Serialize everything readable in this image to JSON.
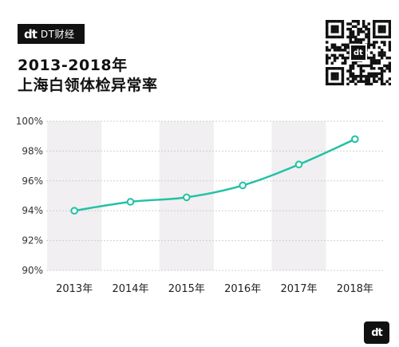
{
  "header": {
    "logo_mark": "dt",
    "logo_text": "DT财经",
    "title_line1": "2013-2018年",
    "title_line2": "上海白领体检异常率"
  },
  "qr_code": {
    "center_mark": "dt"
  },
  "footer": {
    "badge_mark": "dt"
  },
  "colors": {
    "line": "#22c1a4",
    "band": "#f1eff1",
    "grid": "#cfcfcf"
  },
  "chart_data": {
    "type": "line",
    "title": "2013-2018年 上海白领体检异常率",
    "categories": [
      "2013年",
      "2014年",
      "2015年",
      "2016年",
      "2017年",
      "2018年"
    ],
    "series": [
      {
        "values": [
          94.0,
          94.6,
          94.9,
          95.7,
          97.1,
          98.8
        ]
      }
    ],
    "ylim": [
      90,
      100
    ],
    "yticks": [
      "90%",
      "92%",
      "94%",
      "96%",
      "98%",
      "100%"
    ],
    "grid": true,
    "legend": "none"
  }
}
